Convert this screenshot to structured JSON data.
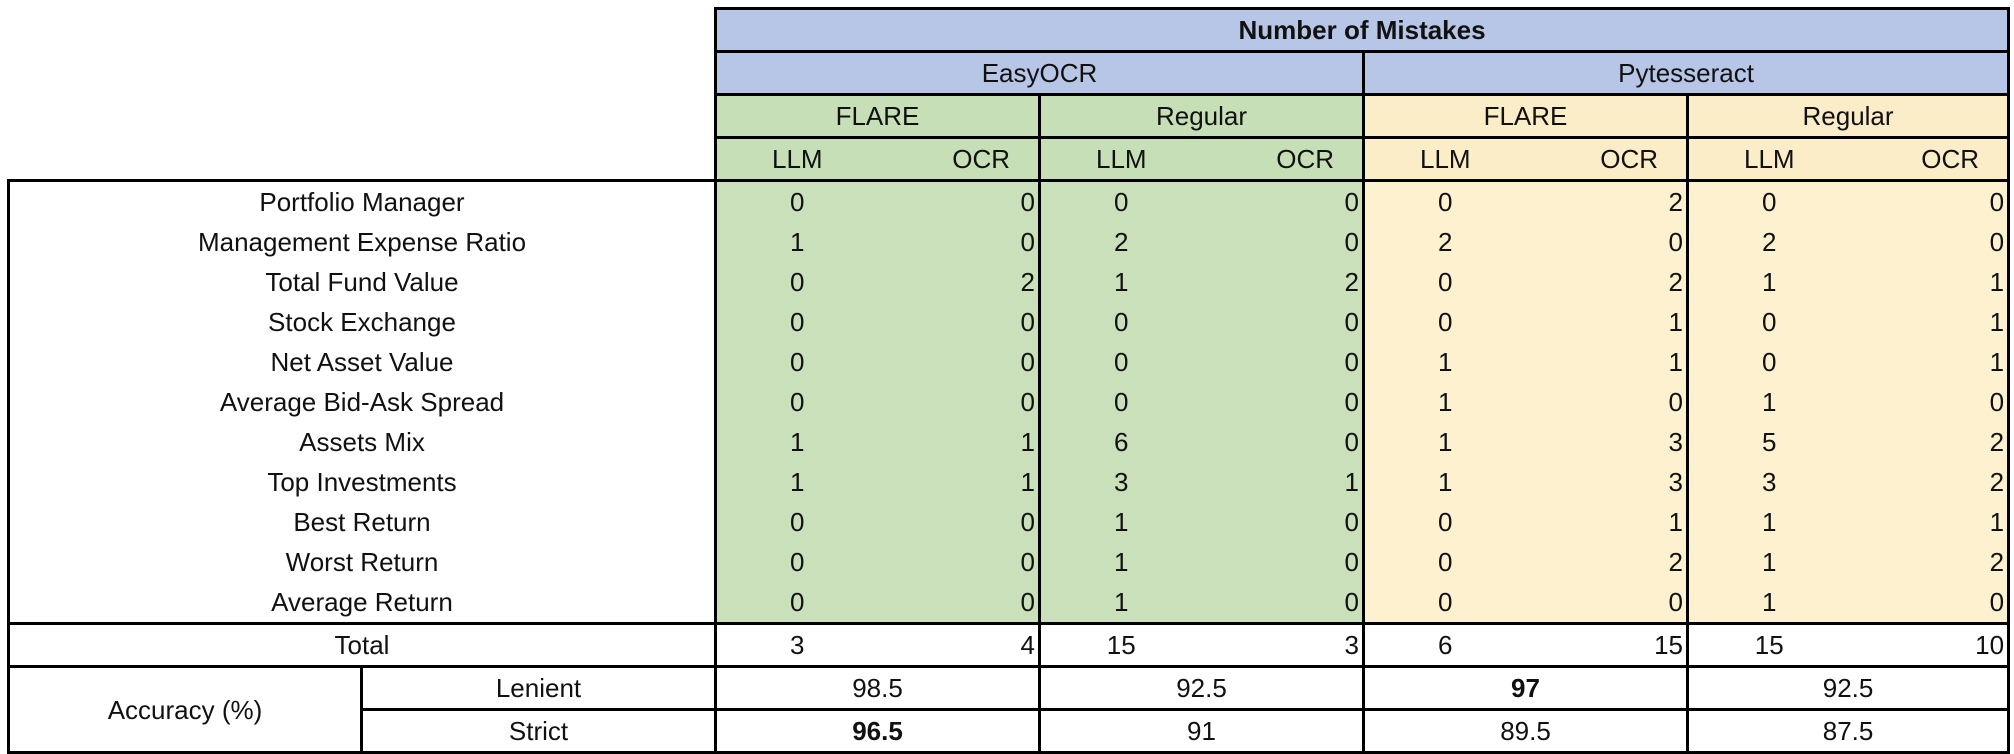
{
  "title": "Number of Mistakes",
  "engines": [
    "EasyOCR",
    "Pytesseract"
  ],
  "modes": [
    "FLARE",
    "Regular",
    "FLARE",
    "Regular"
  ],
  "sub_headers": [
    "LLM",
    "OCR"
  ],
  "rows": [
    {
      "label": "Portfolio Manager",
      "values": [
        "0",
        "0",
        "0",
        "0",
        "0",
        "2",
        "0",
        "0"
      ]
    },
    {
      "label": "Management Expense Ratio",
      "values": [
        "1",
        "0",
        "2",
        "0",
        "2",
        "0",
        "2",
        "0"
      ]
    },
    {
      "label": "Total Fund Value",
      "values": [
        "0",
        "2",
        "1",
        "2",
        "0",
        "2",
        "1",
        "1"
      ]
    },
    {
      "label": "Stock Exchange",
      "values": [
        "0",
        "0",
        "0",
        "0",
        "0",
        "1",
        "0",
        "1"
      ]
    },
    {
      "label": "Net Asset Value",
      "values": [
        "0",
        "0",
        "0",
        "0",
        "1",
        "1",
        "0",
        "1"
      ]
    },
    {
      "label": "Average Bid-Ask Spread",
      "values": [
        "0",
        "0",
        "0",
        "0",
        "1",
        "0",
        "1",
        "0"
      ]
    },
    {
      "label": "Assets Mix",
      "values": [
        "1",
        "1",
        "6",
        "0",
        "1",
        "3",
        "5",
        "2"
      ]
    },
    {
      "label": "Top Investments",
      "values": [
        "1",
        "1",
        "3",
        "1",
        "1",
        "3",
        "3",
        "2"
      ]
    },
    {
      "label": "Best Return",
      "values": [
        "0",
        "0",
        "1",
        "0",
        "0",
        "1",
        "1",
        "1"
      ]
    },
    {
      "label": "Worst Return",
      "values": [
        "0",
        "0",
        "1",
        "0",
        "0",
        "2",
        "1",
        "2"
      ]
    },
    {
      "label": "Average Return",
      "values": [
        "0",
        "0",
        "1",
        "0",
        "0",
        "0",
        "1",
        "0"
      ]
    }
  ],
  "total": {
    "label": "Total",
    "values": [
      "3",
      "4",
      "15",
      "3",
      "6",
      "15",
      "15",
      "10"
    ]
  },
  "accuracy": {
    "label": "Accuracy (%)",
    "lenient": {
      "label": "Lenient",
      "values": [
        "98.5",
        "92.5",
        "97",
        "92.5"
      ]
    },
    "strict": {
      "label": "Strict",
      "values": [
        "96.5",
        "91",
        "89.5",
        "87.5"
      ]
    }
  },
  "colors": {
    "header_blue": "#b7c6e6",
    "easyocr_green": "#c9e0bb",
    "pytesseract_yellow": "#fdf1d0"
  }
}
